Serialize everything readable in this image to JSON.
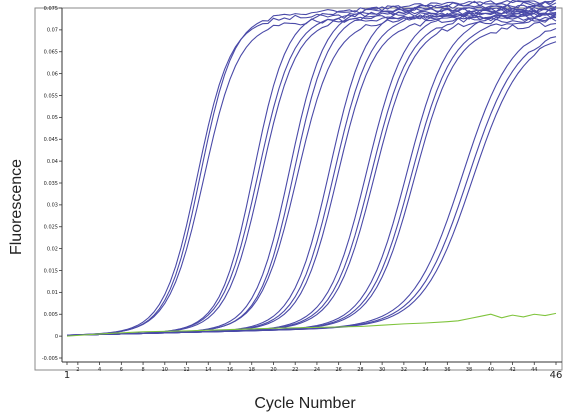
{
  "chart_data": {
    "type": "line",
    "xlabel": "Cycle Number",
    "ylabel": "Fluorescence",
    "xlim": [
      1,
      46
    ],
    "ylim": [
      -0.005,
      0.075
    ],
    "x_ticks": [
      "1",
      "2",
      "4",
      "6",
      "8",
      "10",
      "12",
      "14",
      "16",
      "18",
      "20",
      "22",
      "24",
      "26",
      "28",
      "30",
      "32",
      "34",
      "36",
      "38",
      "40",
      "42",
      "44",
      "46"
    ],
    "y_ticks": [
      "-0.005",
      "0",
      "0.005",
      "0.01",
      "0.015",
      "0.02",
      "0.025",
      "0.03",
      "0.035",
      "0.04",
      "0.045",
      "0.05",
      "0.055",
      "0.06",
      "0.065",
      "0.07",
      "0.075"
    ],
    "colors": {
      "amplification": "#4a4aa8",
      "negative": "#7fc43c",
      "axis": "#333333",
      "frame": "#8a8a8a"
    },
    "amplification_curves": [
      {
        "midpoint": 13.0,
        "plateau": 0.0715,
        "slope": 1.05
      },
      {
        "midpoint": 13.3,
        "plateau": 0.0725,
        "slope": 1.05
      },
      {
        "midpoint": 13.6,
        "plateau": 0.0705,
        "slope": 1.0
      },
      {
        "midpoint": 18.2,
        "plateau": 0.073,
        "slope": 1.05
      },
      {
        "midpoint": 18.6,
        "plateau": 0.072,
        "slope": 1.0
      },
      {
        "midpoint": 18.9,
        "plateau": 0.071,
        "slope": 1.0
      },
      {
        "midpoint": 21.5,
        "plateau": 0.0735,
        "slope": 1.0
      },
      {
        "midpoint": 21.9,
        "plateau": 0.0725,
        "slope": 1.0
      },
      {
        "midpoint": 22.2,
        "plateau": 0.0705,
        "slope": 0.95
      },
      {
        "midpoint": 25.2,
        "plateau": 0.0735,
        "slope": 0.95
      },
      {
        "midpoint": 25.6,
        "plateau": 0.0715,
        "slope": 0.95
      },
      {
        "midpoint": 25.9,
        "plateau": 0.07,
        "slope": 0.95
      },
      {
        "midpoint": 28.6,
        "plateau": 0.072,
        "slope": 0.9
      },
      {
        "midpoint": 29.0,
        "plateau": 0.0705,
        "slope": 0.9
      },
      {
        "midpoint": 29.3,
        "plateau": 0.0695,
        "slope": 0.9
      },
      {
        "midpoint": 32.3,
        "plateau": 0.071,
        "slope": 0.85
      },
      {
        "midpoint": 32.7,
        "plateau": 0.0695,
        "slope": 0.85
      },
      {
        "midpoint": 33.0,
        "plateau": 0.0685,
        "slope": 0.85
      },
      {
        "midpoint": 37.4,
        "plateau": 0.069,
        "slope": 0.7
      },
      {
        "midpoint": 37.9,
        "plateau": 0.0675,
        "slope": 0.7
      },
      {
        "midpoint": 38.3,
        "plateau": 0.0665,
        "slope": 0.7
      }
    ],
    "negative_control": {
      "x": [
        1,
        4,
        8,
        12,
        16,
        20,
        24,
        28,
        30,
        32,
        34,
        36,
        37,
        38,
        39,
        40,
        41,
        42,
        43,
        44,
        45,
        46
      ],
      "y": [
        0.0,
        0.0005,
        0.001,
        0.0012,
        0.0015,
        0.0018,
        0.002,
        0.0022,
        0.0025,
        0.0028,
        0.003,
        0.0033,
        0.0035,
        0.004,
        0.0045,
        0.005,
        0.0042,
        0.0048,
        0.0044,
        0.005,
        0.0047,
        0.0052
      ]
    }
  }
}
